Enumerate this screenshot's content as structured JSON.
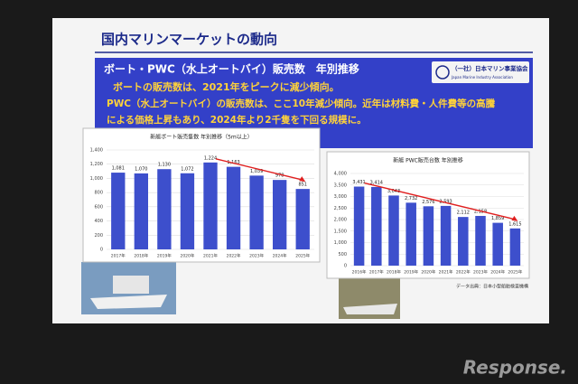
{
  "slide": {
    "header": "国内マリンマーケットの動向",
    "subtitle": "ボート・PWC（水上オートバイ）販売数　年別推移",
    "bullets": [
      "ボートの販売数は、2021年をピークに減少傾向。",
      "PWC（水上オートバイ）の販売数は、ここ10年減少傾向。近年は材料費・人件費等の高騰",
      "による価格上昇もあり、2024年より2千隻を下回る規模に。"
    ],
    "logo": "（一社）日本マリン事業協会",
    "logo_en": "Japan Marine Industry Association",
    "source": "データ出典：日本小型船舶検査機構"
  },
  "chart_data": [
    {
      "type": "bar",
      "title": "新艇ボート販売隻数 年別推移（5m以上）",
      "categories": [
        "2017年",
        "2018年",
        "2019年",
        "2020年",
        "2021年",
        "2022年",
        "2023年",
        "2024年",
        "2025年"
      ],
      "values": [
        1081,
        1070,
        1130,
        1072,
        1224,
        1163,
        1039,
        978,
        851
      ],
      "value_labels": [
        "1,081",
        "1,070",
        "1,130",
        "1,072",
        "1,224",
        "1,163",
        "1,039",
        "978",
        "851"
      ],
      "color": "#3d4fcc",
      "ylim": [
        0,
        1400
      ],
      "yticks": [
        0,
        200,
        400,
        600,
        800,
        {
          "value": 1000,
          "label": "1,000"
        },
        {
          "value": 1200,
          "label": "1,200"
        },
        {
          "value": 1400,
          "label": "1,400"
        }
      ],
      "grid": true
    },
    {
      "type": "bar",
      "title": "新艇 PWC販売台数 年別推移",
      "categories": [
        "2016年",
        "2017年",
        "2018年",
        "2019年",
        "2020年",
        "2021年",
        "2022年",
        "2023年",
        "2024年",
        "2025年"
      ],
      "values": [
        3431,
        3414,
        3043,
        2732,
        2576,
        2593,
        2112,
        2158,
        1859,
        1615
      ],
      "value_labels": [
        "3,431",
        "3,414",
        "3,043",
        "2,732",
        "2,576",
        "2,593",
        "2,112",
        "2,158",
        "1,859",
        "1,615"
      ],
      "color": "#3d4fcc",
      "ylim": [
        0,
        4000
      ],
      "yticks": [
        0,
        500,
        {
          "value": 1000,
          "label": "1,000"
        },
        {
          "value": 1500,
          "label": "1,500"
        },
        {
          "value": 2000,
          "label": "2,000"
        },
        {
          "value": 2500,
          "label": "2,500"
        },
        {
          "value": 3000,
          "label": "3,000"
        },
        {
          "value": 3500,
          "label": "3,500"
        },
        {
          "value": 4000,
          "label": "4,000"
        }
      ],
      "grid": true
    }
  ],
  "watermark": "Response."
}
